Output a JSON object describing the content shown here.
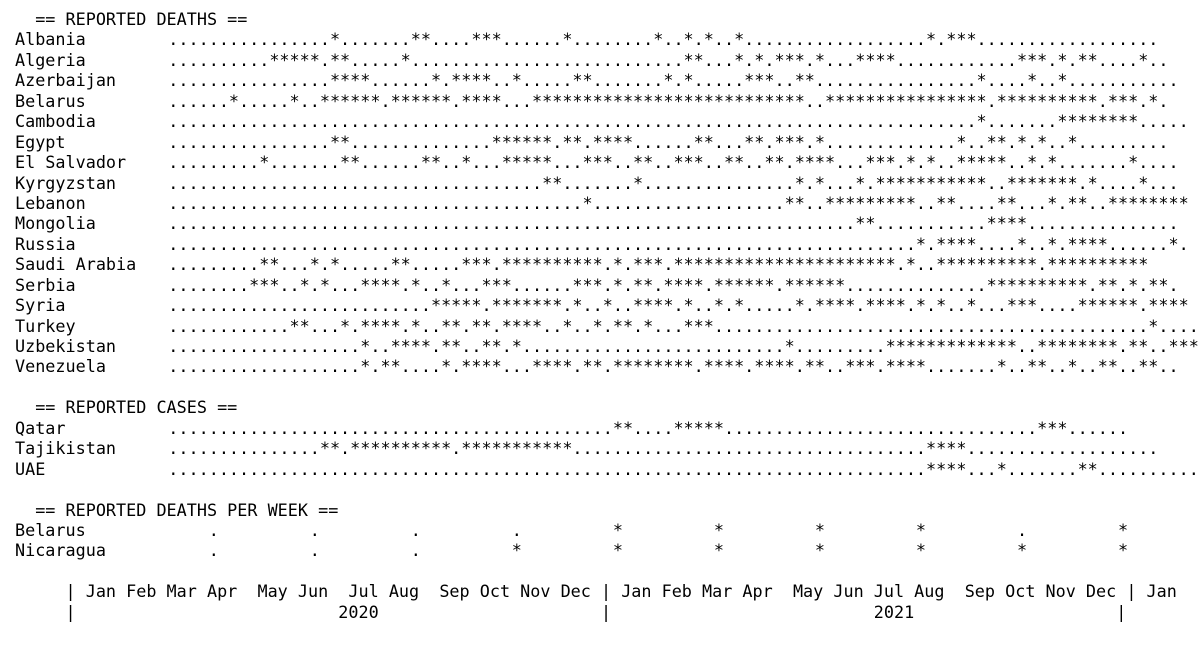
{
  "chart_data": {
    "type": "table",
    "sections": [
      {
        "title": "  == REPORTED DEATHS ==",
        "rows": [
          {
            "name": "Albania",
            "pattern": "................*.......**....***......*........*..*.*..*..................*.***.................."
          },
          {
            "name": "Algeria",
            "pattern": "..........*****.**.....*...........................**...*.*.***.*...****............***.*.**....*.."
          },
          {
            "name": "Azerbaijan",
            "pattern": "................****......*.****..*.....**.......*.*.....***..**................*....*..*..........."
          },
          {
            "name": "Belarus",
            "pattern": "......*.....*..******.******.****...***************************..****************.**********.***.*."
          },
          {
            "name": "Cambodia",
            "pattern": "................................................................................*.......********....."
          },
          {
            "name": "Egypt",
            "pattern": "................**..............******.**.****......**...**.***.*.............*..**.*.*..*........."
          },
          {
            "name": "El Salvador",
            "pattern": ".........*.......**......**..*...*****...***..**..***..**..**.****...***.*.*..*****..*.*.......*...."
          },
          {
            "name": "Kyrgyzstan",
            "pattern": ".....................................**.......*...............*.*...*.***********..*******.*....*..."
          },
          {
            "name": "Lebanon",
            "pattern": ".........................................*...................**..*********..**....**...*.**..********"
          },
          {
            "name": "Mongolia",
            "pattern": "....................................................................**...........****..............."
          },
          {
            "name": "Russia",
            "pattern": "..........................................................................*.****....*..*.****......*."
          },
          {
            "name": "Saudi Arabia",
            "pattern": ".........**...*.*.....**.....***.**********.*.***.**********************.*..**********.**********"
          },
          {
            "name": "Serbia",
            "pattern": "........***..*.*...****.*..*...***......***.*.**.****.******.******..............**********.**.*.**."
          },
          {
            "name": "Syria",
            "pattern": "..........................*****.*******.*..*..****.*..*.*.....*.****.****.*.*..*...***....******.****"
          },
          {
            "name": "Turkey",
            "pattern": "............**...*.****.*..**.**.****..*..*.**.*...***...........................................*......."
          },
          {
            "name": "Uzbekistan",
            "pattern": "...................*..****.**..**.*..........................*.........*************..********.**..***"
          },
          {
            "name": "Venezuela",
            "pattern": "...................*.**....*.****...****.**.********.****.****.**..***.****.......*..**..*..**..**.."
          }
        ]
      },
      {
        "title": "  == REPORTED CASES ==",
        "rows": [
          {
            "name": "Qatar",
            "pattern": "............................................**....*****...............................***......"
          },
          {
            "name": "Tajikistan",
            "pattern": "...............**.**********.***********...................................****..................."
          },
          {
            "name": "UAE",
            "pattern": "...........................................................................****...*.......**.........."
          }
        ]
      },
      {
        "title": "  == REPORTED DEATHS PER WEEK ==",
        "rows": [
          {
            "name": "Belarus",
            "pattern": "    .         .         .         .         *         *         *         *         .         *"
          },
          {
            "name": "Nicaragua",
            "pattern": "    .         .         .         *         *         *         *         *         *         *"
          }
        ]
      }
    ],
    "x_axis": {
      "months_line": "     | Jan Feb Mar Apr  May Jun  Jul Aug  Sep Oct Nov Dec | Jan Feb Mar Apr  May Jun Jul Aug  Sep Oct Nov Dec | Jan",
      "years_line": "     |                          2020                      |                          2021                    |",
      "months": [
        "Jan",
        "Feb",
        "Mar",
        "Apr",
        "May",
        "Jun",
        "Jul",
        "Aug",
        "Sep",
        "Oct",
        "Nov",
        "Dec"
      ],
      "years": [
        "2020",
        "2021"
      ]
    }
  }
}
